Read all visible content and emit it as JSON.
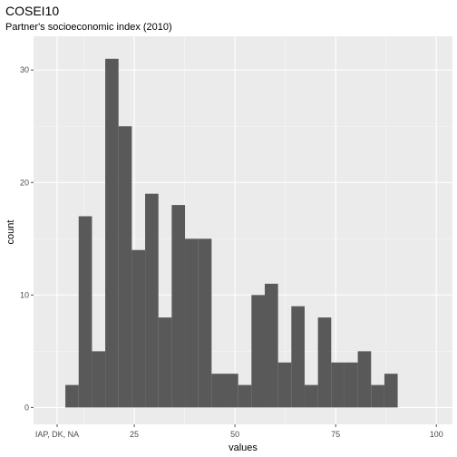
{
  "chart_data": {
    "type": "bar",
    "title": "COSEI10",
    "subtitle": "Partner's socioeconomic index (2010)",
    "xlabel": "values",
    "ylabel": "count",
    "x_tick_labels": [
      "IAP, DK, NA",
      "25",
      "50",
      "75",
      "100"
    ],
    "x_ticks": [
      null,
      25,
      50,
      75,
      100
    ],
    "xlim": [
      0,
      104
    ],
    "y_ticks": [
      0,
      10,
      20,
      30
    ],
    "ylim": [
      -1.5,
      33
    ],
    "bin_width": 3.3,
    "grid": true,
    "bins": [
      {
        "x_start": 7.9,
        "count": 2
      },
      {
        "x_start": 11.2,
        "count": 17
      },
      {
        "x_start": 14.5,
        "count": 5
      },
      {
        "x_start": 17.8,
        "count": 31
      },
      {
        "x_start": 21.1,
        "count": 25
      },
      {
        "x_start": 24.4,
        "count": 14
      },
      {
        "x_start": 27.7,
        "count": 19
      },
      {
        "x_start": 31.0,
        "count": 8
      },
      {
        "x_start": 34.3,
        "count": 18
      },
      {
        "x_start": 37.6,
        "count": 15
      },
      {
        "x_start": 40.9,
        "count": 15
      },
      {
        "x_start": 44.2,
        "count": 3
      },
      {
        "x_start": 47.5,
        "count": 3
      },
      {
        "x_start": 50.8,
        "count": 2
      },
      {
        "x_start": 54.1,
        "count": 10
      },
      {
        "x_start": 57.4,
        "count": 11
      },
      {
        "x_start": 60.7,
        "count": 4
      },
      {
        "x_start": 64.0,
        "count": 9
      },
      {
        "x_start": 67.3,
        "count": 2
      },
      {
        "x_start": 70.6,
        "count": 8
      },
      {
        "x_start": 73.9,
        "count": 4
      },
      {
        "x_start": 77.2,
        "count": 4
      },
      {
        "x_start": 80.5,
        "count": 5
      },
      {
        "x_start": 83.8,
        "count": 2
      },
      {
        "x_start": 87.1,
        "count": 3
      }
    ],
    "colors": {
      "panel": "#ebebeb",
      "grid_major": "#ffffff",
      "grid_minor": "#f5f5f5",
      "bar": "#595959",
      "tick": "#4d4d4d"
    }
  }
}
